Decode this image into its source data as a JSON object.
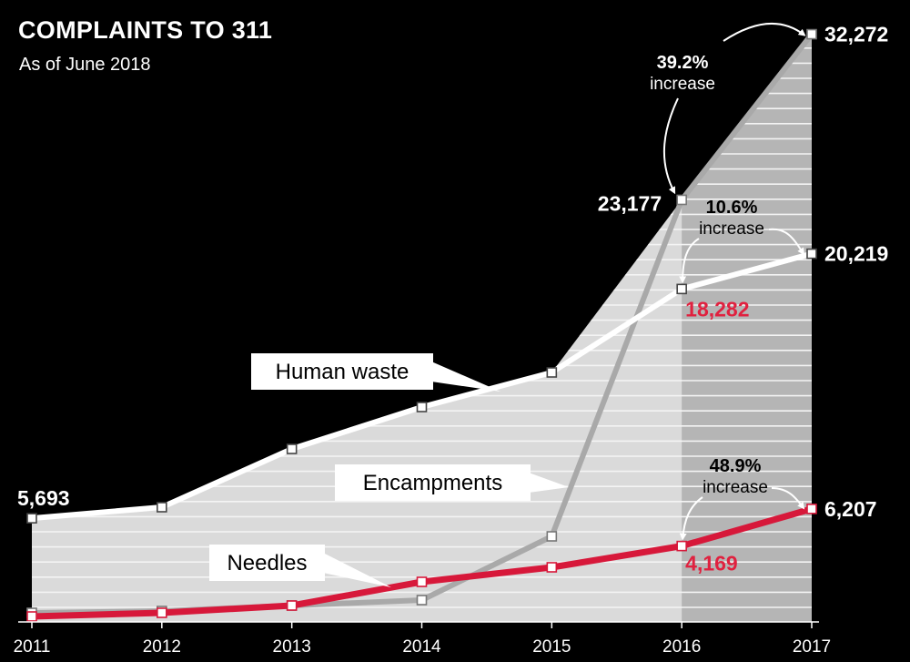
{
  "header": {
    "title": "COMPLAINTS TO 311",
    "subtitle": "As of June 2018"
  },
  "colors": {
    "background": "#000000",
    "human_waste": "#ffffff",
    "encampments": "#a9a9a9",
    "needles": "#d7183a",
    "area_fill": "#dadada",
    "highlight_fill": "#b5b5b5",
    "red_label": "#e0213f"
  },
  "chart_data": {
    "type": "line",
    "title": "COMPLAINTS TO 311",
    "subtitle": "As of June 2018",
    "x": [
      "2011",
      "2012",
      "2013",
      "2014",
      "2015",
      "2016",
      "2017"
    ],
    "ylim": [
      0,
      33000
    ],
    "series": [
      {
        "name": "Human waste",
        "values": [
          5693,
          6300,
          9500,
          11800,
          13700,
          18282,
          20219
        ]
      },
      {
        "name": "Encampments",
        "values": [
          500,
          600,
          900,
          1200,
          4700,
          23177,
          32272
        ]
      },
      {
        "name": "Needles",
        "values": [
          300,
          500,
          900,
          2200,
          3000,
          4169,
          6207
        ]
      }
    ],
    "value_labels": {
      "hw_2011": "5,693",
      "hw_2016": "18,282",
      "hw_2017": "20,219",
      "enc_2016": "23,177",
      "enc_2017": "32,272",
      "nee_2016": "4,169",
      "nee_2017": "6,207"
    },
    "annotations": [
      {
        "series": "Encampments",
        "pct": "39.2%",
        "word": "increase"
      },
      {
        "series": "Human waste",
        "pct": "10.6%",
        "word": "increase"
      },
      {
        "series": "Needles",
        "pct": "48.9%",
        "word": "increase"
      }
    ],
    "legend": "inline callouts",
    "grid": false
  }
}
